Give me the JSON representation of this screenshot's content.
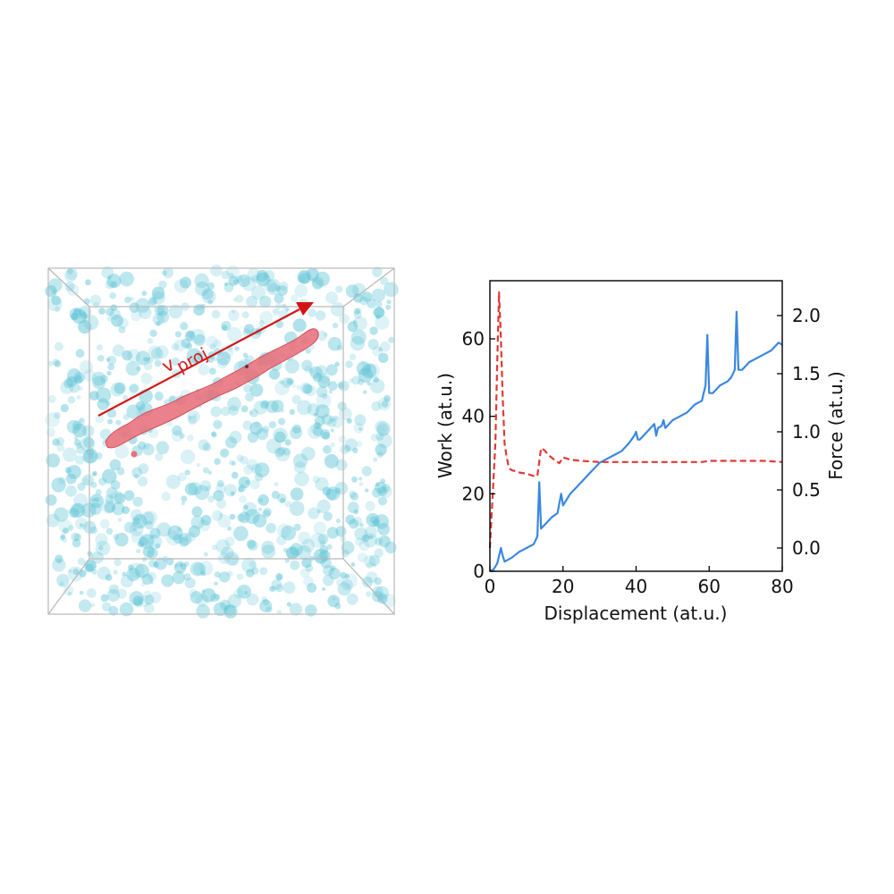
{
  "left_panel": {
    "arrow_label_main": "v",
    "arrow_label_sub": "proj",
    "arrow_color": "#d41414",
    "particle_color": "#5fc4d6",
    "track_color": "#e8707a"
  },
  "chart_data": {
    "type": "line",
    "title": "",
    "xlabel": "Displacement (at.u.)",
    "ylabel": "Work (at.u.)",
    "y2label": "Force (at.u.)",
    "xlim": [
      0,
      80
    ],
    "ylim": [
      0,
      75
    ],
    "y2lim": [
      -0.2,
      2.3
    ],
    "x_ticks": [
      "0",
      "20",
      "40",
      "60",
      "80"
    ],
    "y_ticks": [
      "0",
      "20",
      "40",
      "60"
    ],
    "y2_ticks": [
      "0.0",
      "0.5",
      "1.0",
      "1.5",
      "2.0"
    ],
    "x_tick_values": [
      0,
      20,
      40,
      60,
      80
    ],
    "y_tick_values": [
      0,
      20,
      40,
      60
    ],
    "y2_tick_values": [
      0.0,
      0.5,
      1.0,
      1.5,
      2.0
    ],
    "series": [
      {
        "axis": "left",
        "style": "solid",
        "color": "#3a87e0",
        "x": [
          0,
          1,
          2,
          2.5,
          3,
          3.5,
          4,
          6,
          8,
          10,
          12,
          13,
          13.5,
          14,
          15,
          17,
          18.5,
          19.5,
          20,
          22,
          24,
          26,
          28,
          30,
          32,
          34,
          36,
          38,
          39.5,
          40,
          40.5,
          41,
          43,
          45,
          45.5,
          46,
          47,
          47.5,
          48,
          50,
          52,
          54,
          56,
          58,
          59,
          59.5,
          60,
          61,
          63,
          65,
          66,
          67,
          67.5,
          68,
          69,
          71,
          73,
          75,
          77,
          79,
          80
        ],
        "y": [
          0,
          0.5,
          2,
          4,
          6,
          4,
          2.5,
          3.5,
          5,
          6,
          7,
          9,
          23,
          11,
          12,
          14,
          15,
          20,
          17,
          20,
          22,
          24,
          26,
          28,
          29,
          30,
          31,
          33,
          35,
          36,
          34,
          34,
          36,
          38,
          35,
          37,
          37.5,
          39,
          37,
          39,
          40,
          41,
          43,
          44,
          48,
          61,
          46,
          46,
          48,
          49,
          50,
          52,
          67,
          52,
          52,
          54,
          55,
          56,
          57,
          59,
          58.5
        ]
      },
      {
        "axis": "right",
        "style": "dashed",
        "color": "#e03a36",
        "x": [
          0,
          0.5,
          1,
          1.5,
          2,
          2.5,
          3,
          3.5,
          4,
          4.5,
          5,
          5.5,
          6,
          7,
          8,
          10,
          12,
          13,
          14,
          15,
          16,
          18,
          19,
          20,
          22,
          25,
          30,
          35,
          40,
          45,
          50,
          55,
          58,
          60,
          65,
          70,
          75,
          80
        ],
        "y": [
          0.0,
          0.3,
          0.6,
          0.9,
          1.6,
          2.2,
          1.8,
          1.3,
          0.9,
          0.8,
          0.72,
          0.68,
          0.67,
          0.66,
          0.65,
          0.64,
          0.62,
          0.62,
          0.86,
          0.84,
          0.8,
          0.75,
          0.73,
          0.78,
          0.76,
          0.75,
          0.74,
          0.74,
          0.74,
          0.74,
          0.74,
          0.74,
          0.74,
          0.75,
          0.75,
          0.75,
          0.75,
          0.74
        ]
      }
    ]
  }
}
